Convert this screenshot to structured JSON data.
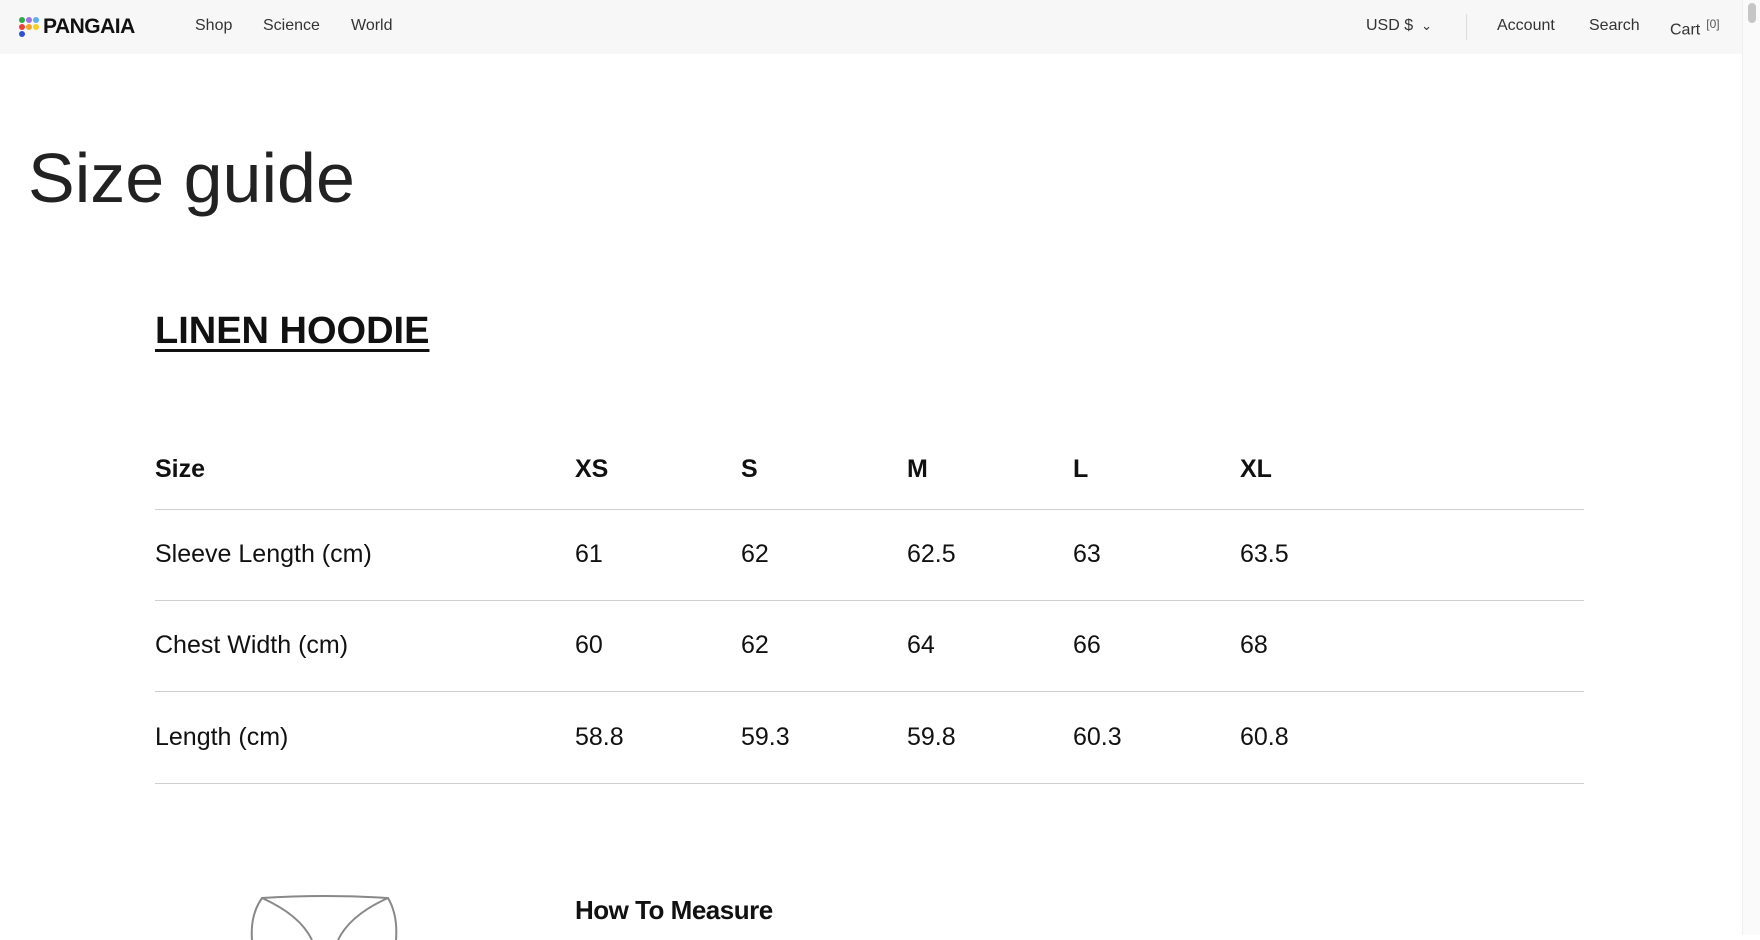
{
  "nav": {
    "brand": "PANGAIA",
    "links": [
      "Shop",
      "Science",
      "World"
    ],
    "currency": "USD $",
    "account": "Account",
    "search": "Search",
    "cart": "Cart",
    "cart_count": "[0]"
  },
  "colors": {
    "logo_dots": [
      "#2fa84f",
      "#a070e0",
      "#5ab0f0",
      "#f03c3c",
      "#f5a623",
      "#f5d020",
      "#3050d0"
    ]
  },
  "page": {
    "title": "Size guide",
    "product": "LINEN HOODIE"
  },
  "table": {
    "headers": [
      "Size",
      "XS",
      "S",
      "M",
      "L",
      "XL"
    ],
    "rows": [
      [
        "Sleeve Length (cm)",
        "61",
        "62",
        "62.5",
        "63",
        "63.5"
      ],
      [
        "Chest Width (cm)",
        "60",
        "62",
        "64",
        "66",
        "68"
      ],
      [
        "Length (cm)",
        "58.8",
        "59.3",
        "59.8",
        "60.3",
        "60.8"
      ]
    ]
  },
  "measure": {
    "title": "How To Measure"
  }
}
